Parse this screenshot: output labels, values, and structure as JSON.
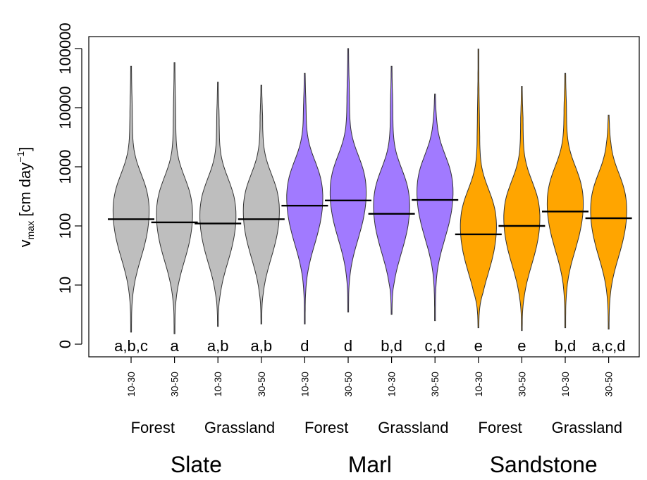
{
  "chart_data": {
    "type": "violin",
    "y_scale": "log",
    "ylabel_main": "v",
    "ylabel_sub": "max",
    "ylabel_unit": "[cm day",
    "ylabel_sup": "−1",
    "ylabel_close": "]",
    "y_tick_labels": [
      "0",
      "10",
      "100",
      "1000",
      "10000",
      "100000"
    ],
    "geology_groups": [
      "Slate",
      "Marl",
      "Sandstone"
    ],
    "landuse_labels": [
      "Forest",
      "Grassland",
      "Forest",
      "Grassland",
      "Forest",
      "Grassland"
    ],
    "colors": {
      "Slate": "#bebebe",
      "Marl": "#a17aff",
      "Sandstone": "#ffa500"
    },
    "violins": [
      {
        "geology": "Slate",
        "landuse": "Forest",
        "depth": "10-30",
        "median": 130,
        "min": 1.6,
        "max": 50000,
        "letters": "a,b,c"
      },
      {
        "geology": "Slate",
        "landuse": "Forest",
        "depth": "30-50",
        "median": 115,
        "min": 1.5,
        "max": 58000,
        "letters": "a"
      },
      {
        "geology": "Slate",
        "landuse": "Grassland",
        "depth": "10-30",
        "median": 110,
        "min": 2,
        "max": 27000,
        "letters": "a,b"
      },
      {
        "geology": "Slate",
        "landuse": "Grassland",
        "depth": "30-50",
        "median": 130,
        "min": 2.2,
        "max": 24000,
        "letters": "a,b"
      },
      {
        "geology": "Marl",
        "landuse": "Forest",
        "depth": "10-30",
        "median": 220,
        "min": 2.2,
        "max": 38000,
        "letters": "d"
      },
      {
        "geology": "Marl",
        "landuse": "Forest",
        "depth": "30-50",
        "median": 270,
        "min": 3.5,
        "max": 100000,
        "letters": "d"
      },
      {
        "geology": "Marl",
        "landuse": "Grassland",
        "depth": "10-30",
        "median": 160,
        "min": 3.2,
        "max": 50000,
        "letters": "b,d"
      },
      {
        "geology": "Marl",
        "landuse": "Grassland",
        "depth": "30-50",
        "median": 275,
        "min": 2.5,
        "max": 17000,
        "letters": "c,d"
      },
      {
        "geology": "Sandstone",
        "landuse": "Forest",
        "depth": "10-30",
        "median": 72,
        "min": 1.9,
        "max": 98000,
        "letters": "e"
      },
      {
        "geology": "Sandstone",
        "landuse": "Forest",
        "depth": "30-50",
        "median": 100,
        "min": 1.7,
        "max": 23000,
        "letters": "e"
      },
      {
        "geology": "Sandstone",
        "landuse": "Grassland",
        "depth": "10-30",
        "median": 175,
        "min": 1.9,
        "max": 38000,
        "letters": "b,d"
      },
      {
        "geology": "Sandstone",
        "landuse": "Grassland",
        "depth": "30-50",
        "median": 135,
        "min": 1.8,
        "max": 7500,
        "letters": "a,c,d"
      }
    ],
    "grid": false,
    "legend": "none"
  }
}
